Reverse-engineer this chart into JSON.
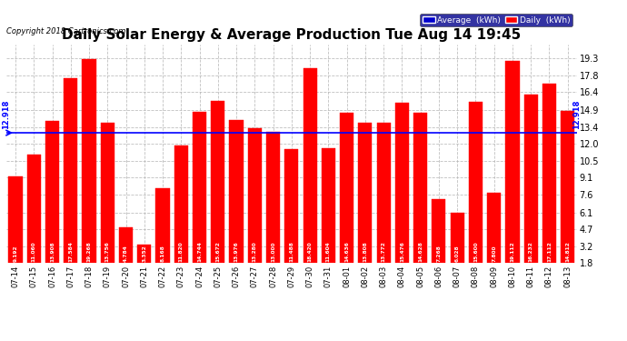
{
  "title": "Daily Solar Energy & Average Production Tue Aug 14 19:45",
  "copyright": "Copyright 2018 Cartronics.com",
  "categories": [
    "07-14",
    "07-15",
    "07-16",
    "07-17",
    "07-18",
    "07-19",
    "07-20",
    "07-21",
    "07-22",
    "07-23",
    "07-24",
    "07-25",
    "07-26",
    "07-27",
    "07-28",
    "07-29",
    "07-30",
    "07-31",
    "08-01",
    "08-02",
    "08-03",
    "08-04",
    "08-05",
    "08-06",
    "08-07",
    "08-08",
    "08-09",
    "08-10",
    "08-11",
    "08-12",
    "08-13"
  ],
  "values": [
    9.192,
    11.06,
    13.908,
    17.584,
    19.268,
    13.756,
    4.784,
    3.352,
    8.168,
    11.82,
    14.744,
    15.672,
    13.976,
    13.28,
    13.0,
    11.488,
    18.42,
    11.604,
    14.636,
    13.808,
    13.772,
    15.476,
    14.628,
    7.268,
    6.028,
    15.6,
    7.8,
    19.112,
    16.232,
    17.112,
    14.812
  ],
  "value_labels": [
    "9.192",
    "11.060",
    "13.908",
    "17.584",
    "19.268",
    "13.756",
    "4.784",
    "3.352",
    "8.168",
    "11.820",
    "14.744",
    "15.672",
    "13.976",
    "13.280",
    "13.000",
    "11.488",
    "18.420",
    "11.604",
    "14.636",
    "13.808",
    "13.772",
    "15.476",
    "14.628",
    "7.268",
    "6.028",
    "15.600",
    "7.800",
    "19.112",
    "16.232",
    "17.112",
    "14.812"
  ],
  "average": 12.918,
  "bar_color": "#ff0000",
  "average_line_color": "#0000ff",
  "ylim_min": 1.8,
  "ylim_max": 20.5,
  "yticks": [
    1.8,
    3.2,
    4.7,
    6.1,
    7.6,
    9.1,
    10.5,
    12.0,
    13.4,
    14.9,
    16.4,
    17.8,
    19.3
  ],
  "bg_color": "#ffffff",
  "plot_bg_color": "#ffffff",
  "grid_color": "#b0b0b0",
  "title_fontsize": 11,
  "bar_text_color": "#ffffff",
  "legend_avg_color": "#0000cd",
  "legend_daily_color": "#ff0000",
  "average_label": "12.918"
}
